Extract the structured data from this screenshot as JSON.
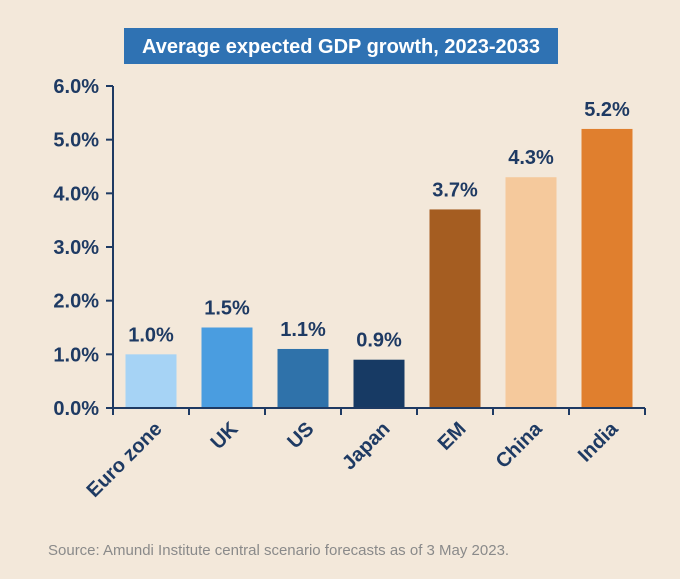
{
  "chart_data": {
    "type": "bar",
    "title": "Average expected GDP growth, 2023-2033",
    "categories": [
      "Euro zone",
      "UK",
      "US",
      "Japan",
      "EM",
      "China",
      "India"
    ],
    "values": [
      1.0,
      1.5,
      1.1,
      0.9,
      3.7,
      4.3,
      5.2
    ],
    "data_labels": [
      "1.0%",
      "1.5%",
      "1.1%",
      "0.9%",
      "3.7%",
      "4.3%",
      "5.2%"
    ],
    "bar_colors": [
      "#a6d3f5",
      "#4a9de0",
      "#2f72aa",
      "#173a64",
      "#a55d21",
      "#f5c99c",
      "#e07f2e"
    ],
    "ylim": [
      0,
      6
    ],
    "yticks": [
      0,
      1,
      2,
      3,
      4,
      5,
      6
    ],
    "ytick_labels": [
      "0.0%",
      "1.0%",
      "2.0%",
      "3.0%",
      "4.0%",
      "5.0%",
      "6.0%"
    ],
    "grid": false,
    "xlabel": "",
    "ylabel": ""
  },
  "source_note": "Source: Amundi Institute central scenario forecasts as of 3 May 2023.",
  "colors": {
    "background": "#f3e8da",
    "title_background": "#2f72b3",
    "text": "#1e3a63"
  }
}
